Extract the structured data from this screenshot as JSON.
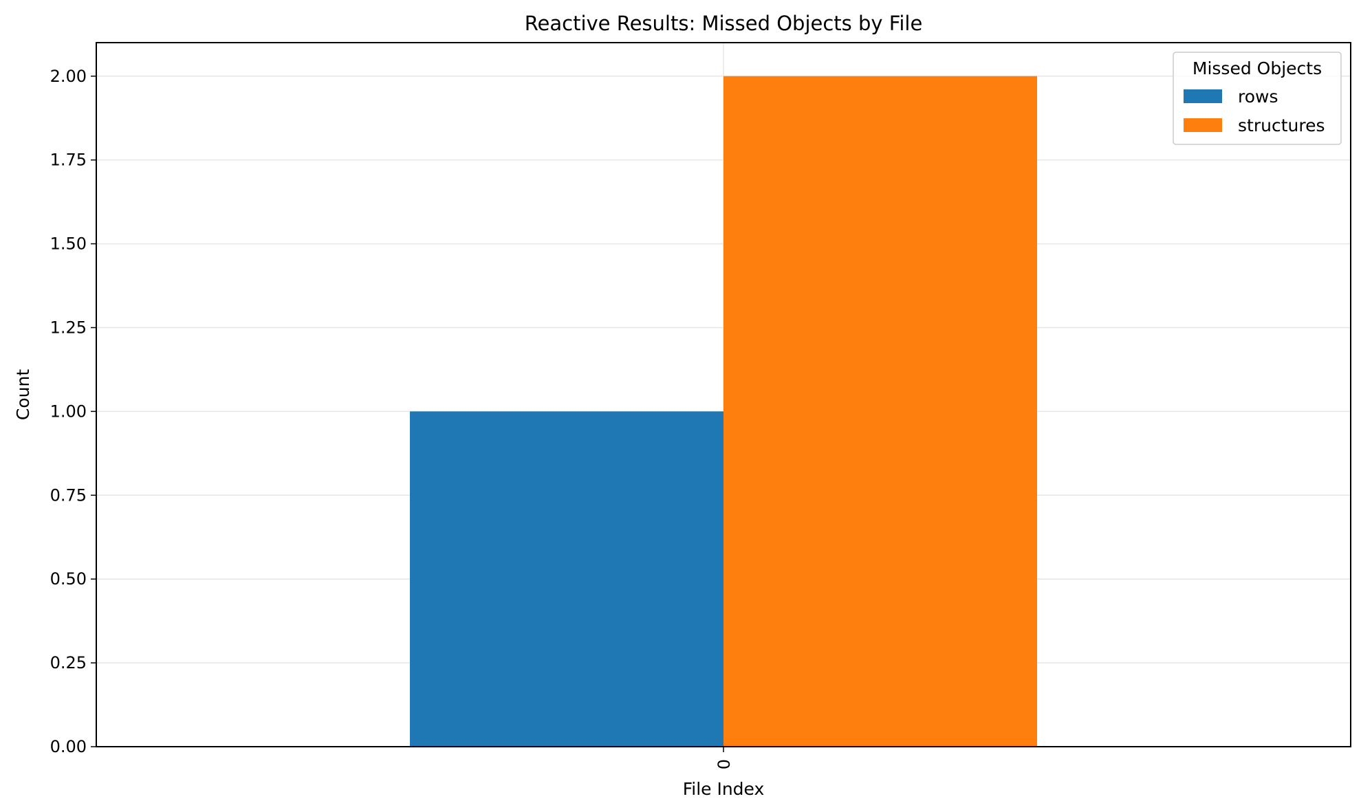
{
  "chart_data": {
    "type": "bar",
    "title": "Reactive Results: Missed Objects by File",
    "xlabel": "File Index",
    "ylabel": "Count",
    "categories": [
      "0"
    ],
    "series": [
      {
        "name": "rows",
        "values": [
          1
        ],
        "color": "#1f77b4"
      },
      {
        "name": "structures",
        "values": [
          2
        ],
        "color": "#ff7f0e"
      }
    ],
    "ylim": [
      0,
      2.1
    ],
    "yticks": [
      "0.00",
      "0.25",
      "0.50",
      "0.75",
      "1.00",
      "1.25",
      "1.50",
      "1.75",
      "2.00"
    ],
    "ytick_values": [
      0,
      0.25,
      0.5,
      0.75,
      1.0,
      1.25,
      1.5,
      1.75,
      2.0
    ],
    "grid": true,
    "legend": {
      "title": "Missed Objects",
      "placement": "top-right"
    }
  }
}
